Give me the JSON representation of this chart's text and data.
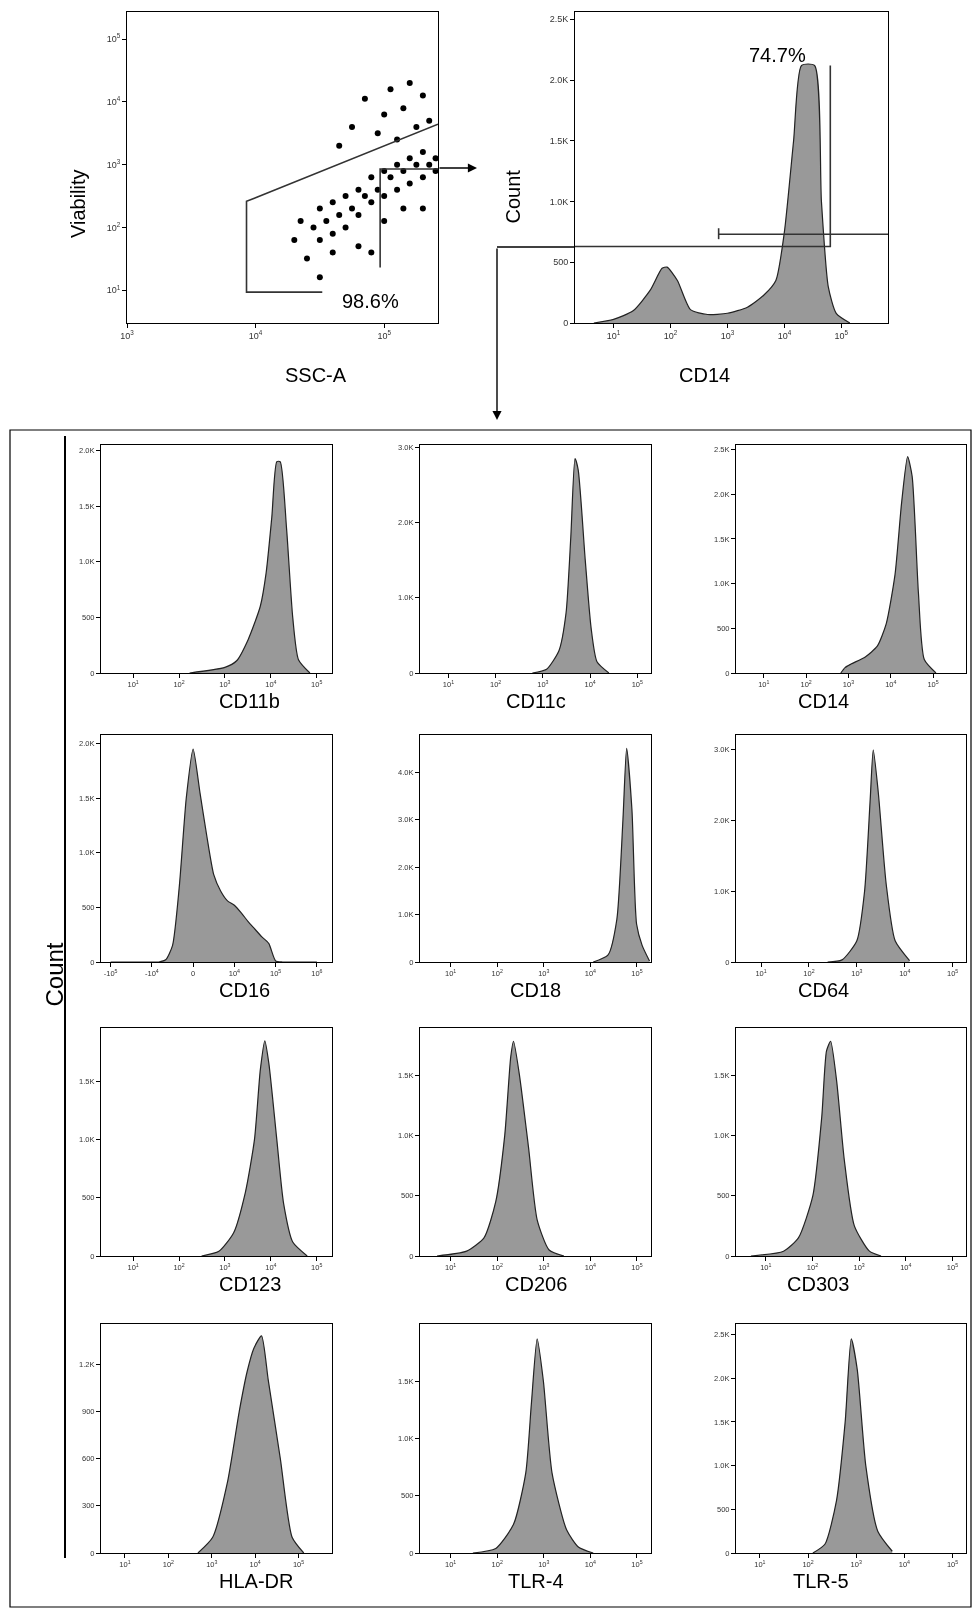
{
  "chart_data": [
    {
      "type": "scatter",
      "xlabel": "SSC-A",
      "ylabel": "Viability",
      "log": "xy",
      "xlim": [
        1000,
        262144
      ],
      "ylim": [
        3,
        270000
      ],
      "xticks": [
        {
          "value": 1000,
          "label": "10$^{3}$"
        },
        {
          "value": 10000,
          "label": "10$^{4}$"
        },
        {
          "value": 100000,
          "label": "10$^{5}$"
        }
      ],
      "yticks": [
        {
          "value": 10,
          "label": "10$^{1}$"
        },
        {
          "value": 100,
          "label": "10$^{2}$"
        },
        {
          "value": 1000,
          "label": "10$^{3}$"
        },
        {
          "value": 10000,
          "label": "10$^{4}$"
        },
        {
          "value": 100000,
          "label": "10$^{5}$"
        }
      ],
      "annotations": [
        "98.6%"
      ],
      "series": [
        {
          "color": "#000000",
          "marker": "circle",
          "x": [
            28200,
            31600,
            31600,
            35500,
            39800,
            39800,
            44700,
            50100,
            50100,
            56200,
            63100,
            63100,
            70800,
            79400,
            79400,
            89100,
            100000,
            100000,
            112000,
            126000,
            126000,
            141000,
            158000,
            158000,
            178000,
            200000,
            200000,
            224000,
            251000,
            251000,
            25100,
            22400,
            39800,
            44700,
            56200,
            70800,
            89100,
            100000,
            112000,
            126000,
            141000,
            158000,
            178000,
            200000,
            224000,
            63100,
            100000,
            141000,
            31600,
            79400,
            200000,
            20000
          ],
          "values": [
            100,
            200,
            63,
            126,
            251,
            79,
            158,
            316,
            100,
            200,
            398,
            158,
            316,
            631,
            251,
            398,
            794,
            316,
            631,
            1000,
            398,
            794,
            1259,
            501,
            1000,
            1585,
            631,
            1000,
            1259,
            794,
            32,
            126,
            40,
            2000,
            3981,
            11220,
            3162,
            6310,
            15850,
            2512,
            7943,
            19950,
            3981,
            12600,
            5012,
            50,
            126,
            200,
            16,
            40,
            200,
            63
          ]
        },
        {
          "type": "line",
          "color": "#333333",
          "x": [
            262144,
            8500,
            8500,
            33000,
            null,
            93000,
            93000,
            262144
          ],
          "values": [
            4400,
            260,
            9.3,
            9.3,
            null,
            23,
            850,
            850
          ]
        }
      ]
    },
    {
      "type": "area",
      "xlabel": "CD14",
      "ylabel": "Count",
      "log": "x",
      "xlim": [
        2.1,
        660000
      ],
      "ylim": [
        0,
        2560
      ],
      "xticks": [
        {
          "value": 10,
          "label": "10$^{1}$"
        },
        {
          "value": 100,
          "label": "10$^{2}$"
        },
        {
          "value": 1000,
          "label": "10$^{3}$"
        },
        {
          "value": 10000,
          "label": "10$^{4}$"
        },
        {
          "value": 100000,
          "label": "10$^{5}$"
        }
      ],
      "yticks": [
        0,
        500,
        {
          "value": 1000,
          "label": "1.0K"
        },
        {
          "value": 1500,
          "label": "1.5K"
        },
        {
          "value": 2000,
          "label": "2.0K"
        },
        {
          "value": 2500,
          "label": "2.5K"
        }
      ],
      "annotations": [
        "74.7%"
      ],
      "series": [
        {
          "color": "#999999",
          "x": [
            4.5,
            10,
            22,
            44,
            71,
            87,
            132,
            224,
            447,
            1000,
            2240,
            4370,
            7080,
            10000,
            14500,
            20000,
            33900,
            44700,
            58900,
            81300,
            141000
          ],
          "values": [
            0,
            30,
            100,
            270,
            450,
            460,
            350,
            110,
            70,
            80,
            130,
            230,
            350,
            750,
            1500,
            2120,
            2120,
            1000,
            300,
            80,
            0
          ]
        },
        {
          "type": "line",
          "color": "#333333",
          "x": [
            700,
            660000
          ],
          "values": [
            730,
            730
          ]
        },
        {
          "type": "line",
          "color": "#333333",
          "x": [
            64000,
            64000,
            2.1
          ],
          "values": [
            2120,
            630,
            630
          ]
        },
        {
          "type": "line",
          "color": "#333333",
          "x": [
            700,
            700
          ],
          "values": [
            690,
            780
          ]
        }
      ]
    },
    {
      "type": "area",
      "xlabel": "CD11b",
      "annotations": [
        "Count"
      ],
      "log": "x",
      "xlim": [
        2,
        215000
      ],
      "ylim": [
        0,
        2050
      ],
      "xticks": [
        {
          "value": 10,
          "label": "10$^{1}$"
        },
        {
          "value": 100,
          "label": "10$^{2}$"
        },
        {
          "value": 1000,
          "label": "10$^{3}$"
        },
        {
          "value": 10000,
          "label": "10$^{4}$"
        },
        {
          "value": 100000,
          "label": "10$^{5}$"
        }
      ],
      "yticks": [
        0,
        500,
        {
          "value": 1000,
          "label": "1.0K"
        },
        {
          "value": 1500,
          "label": "1.5K"
        },
        {
          "value": 2000,
          "label": "2.0K"
        }
      ],
      "series": [
        {
          "color": "#999999",
          "x": [
            170,
            1000,
            1800,
            3200,
            5900,
            7900,
            10500,
            13500,
            16000,
            22000,
            30000,
            40000,
            71000
          ],
          "values": [
            0,
            50,
            110,
            300,
            600,
            900,
            1400,
            1900,
            1900,
            1300,
            500,
            120,
            0
          ]
        }
      ]
    },
    {
      "type": "area",
      "xlabel": "CD11c",
      "log": "x",
      "xlim": [
        2.5,
        195000
      ],
      "ylim": [
        0,
        3030
      ],
      "xticks": [
        {
          "value": 10,
          "label": "10$^{1}$"
        },
        {
          "value": 100,
          "label": "10$^{2}$"
        },
        {
          "value": 1000,
          "label": "10$^{3}$"
        },
        {
          "value": 10000,
          "label": "10$^{4}$"
        },
        {
          "value": 100000,
          "label": "10$^{5}$"
        }
      ],
      "yticks": [
        0,
        {
          "value": 1000,
          "label": "1.0K"
        },
        {
          "value": 2000,
          "label": "2.0K"
        },
        {
          "value": 3000,
          "label": "3.0K"
        }
      ],
      "series": [
        {
          "color": "#999999",
          "x": [
            600,
            1200,
            2200,
            3100,
            3900,
            4800,
            5600,
            7900,
            10500,
            14000,
            25000
          ],
          "values": [
            0,
            50,
            300,
            800,
            1800,
            2850,
            2700,
            1500,
            600,
            150,
            0
          ]
        }
      ]
    },
    {
      "type": "area",
      "xlabel": "CD14",
      "log": "x",
      "xlim": [
        2.2,
        600000
      ],
      "ylim": [
        0,
        2550
      ],
      "xticks": [
        {
          "value": 10,
          "label": "10$^{1}$"
        },
        {
          "value": 100,
          "label": "10$^{2}$"
        },
        {
          "value": 1000,
          "label": "10$^{3}$"
        },
        {
          "value": 10000,
          "label": "10$^{4}$"
        },
        {
          "value": 100000,
          "label": "10$^{5}$"
        }
      ],
      "yticks": [
        0,
        500,
        {
          "value": 1000,
          "label": "1.0K"
        },
        {
          "value": 1500,
          "label": "1.5K"
        },
        {
          "value": 2000,
          "label": "2.0K"
        },
        {
          "value": 2500,
          "label": "2.5K"
        }
      ],
      "series": [
        {
          "color": "#999999",
          "x": [
            660,
            830,
            1150,
            2500,
            4800,
            7800,
            12600,
            18000,
            25000,
            32000,
            45000,
            62000,
            117000
          ],
          "values": [
            0,
            60,
            100,
            180,
            300,
            550,
            1100,
            1900,
            2420,
            2200,
            900,
            150,
            0
          ]
        }
      ]
    },
    {
      "type": "area",
      "xlabel": "CD16",
      "categories": [
        "-10$^{5}$",
        null,
        null,
        null,
        null,
        null,
        "-10$^{4}$",
        null,
        null,
        null,
        null,
        null,
        "0",
        null,
        null,
        null,
        null,
        null,
        "10$^{4}$",
        null,
        null,
        null,
        null,
        null,
        "10$^{5}$",
        null,
        null,
        null,
        null,
        null,
        "10$^{6}$"
      ],
      "ylim": [
        0,
        2080
      ],
      "yticks": [
        0,
        500,
        {
          "value": 1000,
          "label": "1.0K"
        },
        {
          "value": 1500,
          "label": "1.5K"
        },
        {
          "value": 2000,
          "label": "2.0K"
        }
      ],
      "series": [
        {
          "color": "#999999",
          "values": [
            0,
            0,
            0,
            0,
            0,
            0,
            0,
            0,
            20,
            150,
            700,
            1500,
            1950,
            1550,
            1150,
            800,
            650,
            560,
            520,
            450,
            370,
            300,
            230,
            170,
            10,
            0,
            0,
            0,
            0,
            0,
            0
          ]
        }
      ]
    },
    {
      "type": "area",
      "xlabel": "CD18",
      "log": "x",
      "xlim": [
        2.2,
        200000
      ],
      "ylim": [
        0,
        4780
      ],
      "xticks": [
        {
          "value": 10,
          "label": "10$^{1}$"
        },
        {
          "value": 100,
          "label": "10$^{2}$"
        },
        {
          "value": 1000,
          "label": "10$^{3}$"
        },
        {
          "value": 10000,
          "label": "10$^{4}$"
        },
        {
          "value": 100000,
          "label": "10$^{5}$"
        }
      ],
      "yticks": [
        0,
        {
          "value": 1000,
          "label": "1.0K"
        },
        {
          "value": 2000,
          "label": "2.0K"
        },
        {
          "value": 3000,
          "label": "3.0K"
        },
        {
          "value": 4000,
          "label": "4.0K"
        }
      ],
      "series": [
        {
          "color": "#999999",
          "x": [
            11500,
            24000,
            37000,
            50000,
            60000,
            78000,
            98000,
            129000,
            186000
          ],
          "values": [
            0,
            150,
            900,
            3000,
            4500,
            3200,
            800,
            350,
            20
          ]
        }
      ]
    },
    {
      "type": "area",
      "xlabel": "CD64",
      "log": "x",
      "xlim": [
        3,
        190000
      ],
      "ylim": [
        0,
        3210
      ],
      "xticks": [
        {
          "value": 10,
          "label": "10$^{1}$"
        },
        {
          "value": 100,
          "label": "10$^{2}$"
        },
        {
          "value": 1000,
          "label": "10$^{3}$"
        },
        {
          "value": 10000,
          "label": "10$^{4}$"
        },
        {
          "value": 100000,
          "label": "10$^{5}$"
        }
      ],
      "yticks": [
        0,
        {
          "value": 1000,
          "label": "1.0K"
        },
        {
          "value": 2000,
          "label": "2.0K"
        },
        {
          "value": 3000,
          "label": "3.0K"
        }
      ],
      "series": [
        {
          "color": "#999999",
          "x": [
            245,
            490,
            1000,
            1450,
            1900,
            2200,
            2800,
            4100,
            6300,
            12600
          ],
          "values": [
            0,
            30,
            300,
            1000,
            2300,
            3000,
            2400,
            1100,
            300,
            20
          ]
        }
      ]
    },
    {
      "type": "area",
      "xlabel": "CD123",
      "log": "x",
      "xlim": [
        2,
        215000
      ],
      "ylim": [
        0,
        1960
      ],
      "xticks": [
        {
          "value": 10,
          "label": "10$^{1}$"
        },
        {
          "value": 100,
          "label": "10$^{2}$"
        },
        {
          "value": 1000,
          "label": "10$^{3}$"
        },
        {
          "value": 10000,
          "label": "10$^{4}$"
        },
        {
          "value": 100000,
          "label": "10$^{5}$"
        }
      ],
      "yticks": [
        0,
        500,
        {
          "value": 1000,
          "label": "1.0K"
        },
        {
          "value": 1500,
          "label": "1.5K"
        }
      ],
      "series": [
        {
          "color": "#999999",
          "x": [
            310,
            740,
            1550,
            2800,
            4400,
            5900,
            7400,
            9100,
            13500,
            19000,
            30000,
            62000
          ],
          "values": [
            0,
            40,
            200,
            550,
            1000,
            1600,
            1850,
            1650,
            1000,
            450,
            120,
            0
          ]
        }
      ]
    },
    {
      "type": "area",
      "xlabel": "CD206",
      "log": "x",
      "xlim": [
        2.2,
        200000
      ],
      "ylim": [
        0,
        1890
      ],
      "xticks": [
        {
          "value": 10,
          "label": "10$^{1}$"
        },
        {
          "value": 100,
          "label": "10$^{2}$"
        },
        {
          "value": 1000,
          "label": "10$^{3}$"
        },
        {
          "value": 10000,
          "label": "10$^{4}$"
        },
        {
          "value": 100000,
          "label": "10$^{5}$"
        }
      ],
      "yticks": [
        0,
        500,
        {
          "value": 1000,
          "label": "1.0K"
        },
        {
          "value": 1500,
          "label": "1.5K"
        }
      ],
      "series": [
        {
          "color": "#999999",
          "x": [
            5.1,
            22,
            52,
            93,
            145,
            195,
            224,
            300,
            470,
            720,
            1300,
            2700
          ],
          "values": [
            0,
            40,
            150,
            450,
            1000,
            1650,
            1780,
            1500,
            900,
            300,
            50,
            0
          ]
        }
      ]
    },
    {
      "type": "area",
      "xlabel": "CD303",
      "log": "x",
      "xlim": [
        2.3,
        195000
      ],
      "ylim": [
        0,
        1890
      ],
      "xticks": [
        {
          "value": 10,
          "label": "10$^{1}$"
        },
        {
          "value": 100,
          "label": "10$^{2}$"
        },
        {
          "value": 1000,
          "label": "10$^{3}$"
        },
        {
          "value": 10000,
          "label": "10$^{4}$"
        },
        {
          "value": 100000,
          "label": "10$^{5}$"
        }
      ],
      "yticks": [
        0,
        500,
        {
          "value": 1000,
          "label": "1.0K"
        },
        {
          "value": 1500,
          "label": "1.5K"
        }
      ],
      "series": [
        {
          "color": "#999999",
          "x": [
            4.8,
            24,
            50,
            102,
            158,
            200,
            245,
            330,
            480,
            790,
            1660,
            2950
          ],
          "values": [
            0,
            40,
            150,
            500,
            1150,
            1700,
            1780,
            1450,
            800,
            250,
            40,
            0
          ]
        }
      ]
    },
    {
      "type": "area",
      "xlabel": "HLA-DR",
      "log": "x",
      "xlim": [
        2.8,
        590000
      ],
      "ylim": [
        0,
        1455
      ],
      "xticks": [
        {
          "value": 10,
          "label": "10$^{1}$"
        },
        {
          "value": 100,
          "label": "10$^{2}$"
        },
        {
          "value": 1000,
          "label": "10$^{3}$"
        },
        {
          "value": 10000,
          "label": "10$^{4}$"
        },
        {
          "value": 100000,
          "label": "10$^{5}$"
        }
      ],
      "yticks": [
        0,
        300,
        600,
        900,
        {
          "value": 1200,
          "label": "1.2K"
        }
      ],
      "series": [
        {
          "color": "#999999",
          "x": [
            480,
            1050,
            2300,
            4300,
            6500,
            9300,
            14000,
            20000,
            38000,
            71000,
            132000
          ],
          "values": [
            0,
            100,
            450,
            900,
            1150,
            1300,
            1380,
            1100,
            600,
            100,
            0
          ]
        }
      ]
    },
    {
      "type": "area",
      "xlabel": "TLR-4",
      "log": "x",
      "xlim": [
        2.2,
        200000
      ],
      "ylim": [
        0,
        2000
      ],
      "xticks": [
        {
          "value": 10,
          "label": "10$^{1}$"
        },
        {
          "value": 100,
          "label": "10$^{2}$"
        },
        {
          "value": 1000,
          "label": "10$^{3}$"
        },
        {
          "value": 10000,
          "label": "10$^{4}$"
        },
        {
          "value": 100000,
          "label": "10$^{5}$"
        }
      ],
      "yticks": [
        0,
        500,
        {
          "value": 1000,
          "label": "1.0K"
        },
        {
          "value": 1500,
          "label": "1.5K"
        }
      ],
      "series": [
        {
          "color": "#999999",
          "x": [
            30,
            93,
            224,
            410,
            540,
            720,
            980,
            1500,
            3100,
            5600,
            11500
          ],
          "values": [
            0,
            40,
            250,
            700,
            1300,
            1870,
            1500,
            700,
            200,
            50,
            0
          ]
        }
      ]
    },
    {
      "type": "area",
      "xlabel": "TLR-5",
      "log": "x",
      "xlim": [
        3.2,
        190000
      ],
      "ylim": [
        0,
        2620
      ],
      "xticks": [
        {
          "value": 10,
          "label": "10$^{1}$"
        },
        {
          "value": 100,
          "label": "10$^{2}$"
        },
        {
          "value": 1000,
          "label": "10$^{3}$"
        },
        {
          "value": 10000,
          "label": "10$^{4}$"
        },
        {
          "value": 100000,
          "label": "10$^{5}$"
        }
      ],
      "yticks": [
        0,
        500,
        {
          "value": 1000,
          "label": "1.0K"
        },
        {
          "value": 1500,
          "label": "1.5K"
        },
        {
          "value": 2000,
          "label": "2.0K"
        },
        {
          "value": 2500,
          "label": "2.5K"
        }
      ],
      "series": [
        {
          "color": "#999999",
          "x": [
            126,
            224,
            390,
            590,
            790,
            1050,
            1580,
            2800,
            5600
          ],
          "values": [
            0,
            100,
            600,
            1500,
            2450,
            2100,
            1000,
            250,
            20
          ]
        }
      ]
    }
  ]
}
